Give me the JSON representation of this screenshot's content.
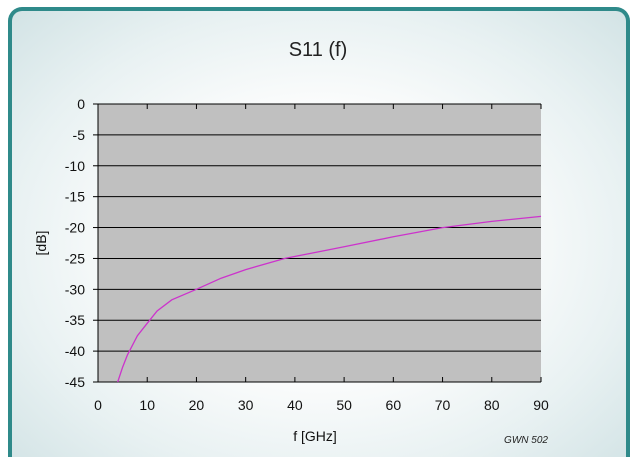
{
  "chart_data": {
    "type": "line",
    "title": "S11 (f)",
    "xlabel": "f [GHz]",
    "ylabel": "[dB]",
    "xlim": [
      0,
      90
    ],
    "ylim": [
      -45,
      0
    ],
    "xticks": [
      0,
      10,
      20,
      30,
      40,
      50,
      60,
      70,
      80,
      90
    ],
    "yticks": [
      0,
      -5,
      -10,
      -15,
      -20,
      -25,
      -30,
      -35,
      -40,
      -45
    ],
    "grid": true,
    "legend": "none",
    "plot_background": "#c0c0c0",
    "series": [
      {
        "color": "#cc33cc",
        "x": [
          4,
          5,
          6,
          8,
          10,
          12,
          15,
          20,
          25,
          30,
          38,
          45,
          50,
          60,
          70,
          80,
          90
        ],
        "y": [
          -45,
          -42.6,
          -40.6,
          -37.5,
          -35.5,
          -33.5,
          -31.7,
          -30,
          -28.2,
          -26.8,
          -25,
          -23.9,
          -23.1,
          -21.5,
          -20,
          -19,
          -18.2
        ]
      }
    ],
    "annotation": "GWN 502"
  }
}
